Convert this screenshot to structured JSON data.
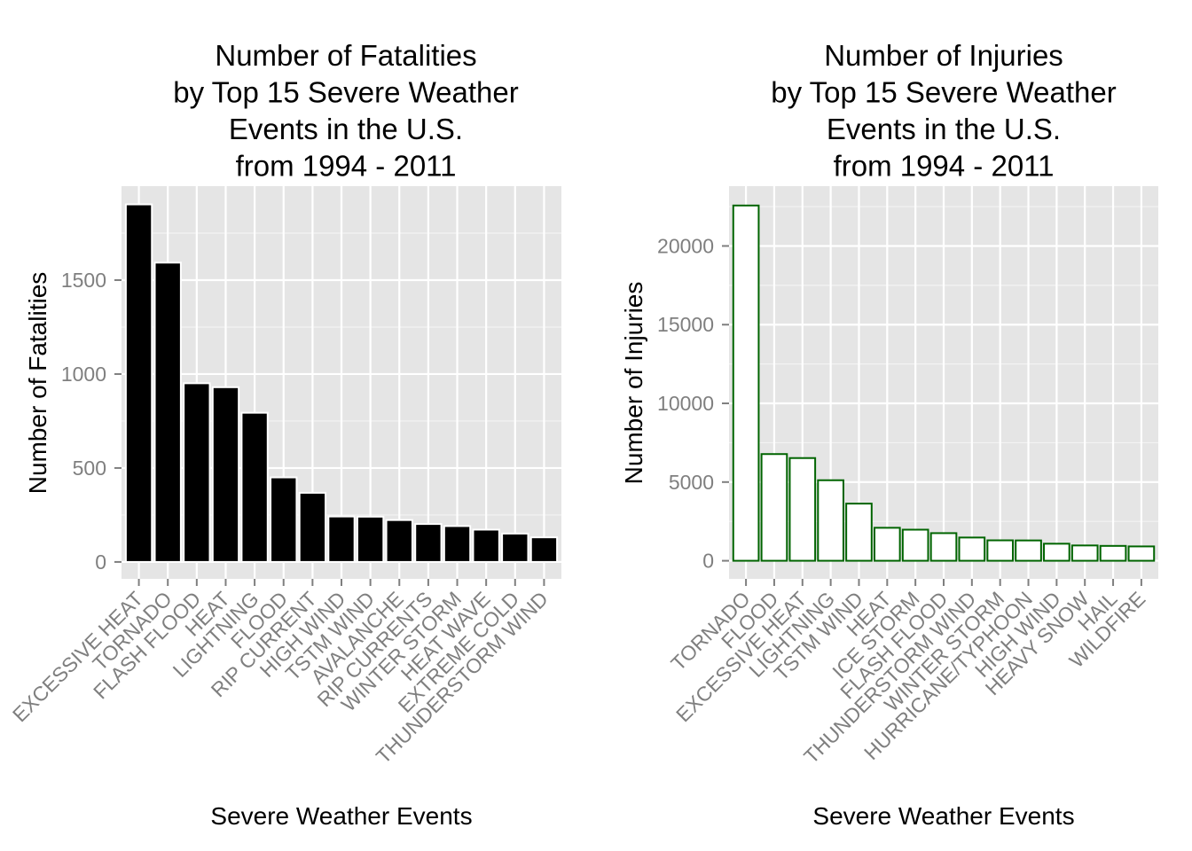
{
  "chart_data": [
    {
      "type": "bar",
      "title_lines": [
        "Number of Fatalities",
        "by Top 15 Severe Weather",
        "Events in the U.S.",
        "from 1994 - 2011"
      ],
      "xlabel": "Severe Weather Events",
      "ylabel": "Number of Fatalities",
      "categories": [
        "EXCESSIVE HEAT",
        "TORNADO",
        "FLASH FLOOD",
        "HEAT",
        "LIGHTNING",
        "FLOOD",
        "RIP CURRENT",
        "HIGH WIND",
        "TSTM WIND",
        "AVALANCHE",
        "RIP CURRENTS",
        "WINTER STORM",
        "HEAT WAVE",
        "EXTREME COLD",
        "THUNDERSTORM WIND"
      ],
      "values": [
        1903,
        1593,
        951,
        930,
        794,
        450,
        368,
        242,
        241,
        223,
        202,
        191,
        172,
        151,
        131
      ],
      "yticks": [
        0,
        500,
        1000,
        1500
      ],
      "ylim": [
        -90,
        2000
      ],
      "bar_fill": "#000000",
      "bar_stroke": "#ffffff",
      "panel_background": "#e5e5e5",
      "grid_color": "#ffffff",
      "grid": true
    },
    {
      "type": "bar",
      "title_lines": [
        "Number of Injuries",
        "by Top 15 Severe Weather",
        "Events in the U.S.",
        "from 1994 - 2011"
      ],
      "xlabel": "Severe Weather Events",
      "ylabel": "Number of Injuries",
      "categories": [
        "TORNADO",
        "FLOOD",
        "EXCESSIVE HEAT",
        "LIGHTNING",
        "TSTM WIND",
        "HEAT",
        "ICE STORM",
        "FLASH FLOOD",
        "THUNDERSTORM WIND",
        "WINTER STORM",
        "HURRICANE/TYPHOON",
        "HIGH WIND",
        "HEAVY SNOW",
        "HAIL",
        "WILDFIRE"
      ],
      "values": [
        22571,
        6778,
        6525,
        5116,
        3631,
        2095,
        1975,
        1755,
        1476,
        1298,
        1291,
        1083,
        972,
        944,
        911
      ],
      "yticks": [
        0,
        5000,
        10000,
        15000,
        20000
      ],
      "ylim": [
        -1150,
        23800
      ],
      "bar_fill": "#ffffff",
      "bar_stroke": "#006400",
      "panel_background": "#e5e5e5",
      "grid_color": "#ffffff",
      "grid": true
    }
  ]
}
